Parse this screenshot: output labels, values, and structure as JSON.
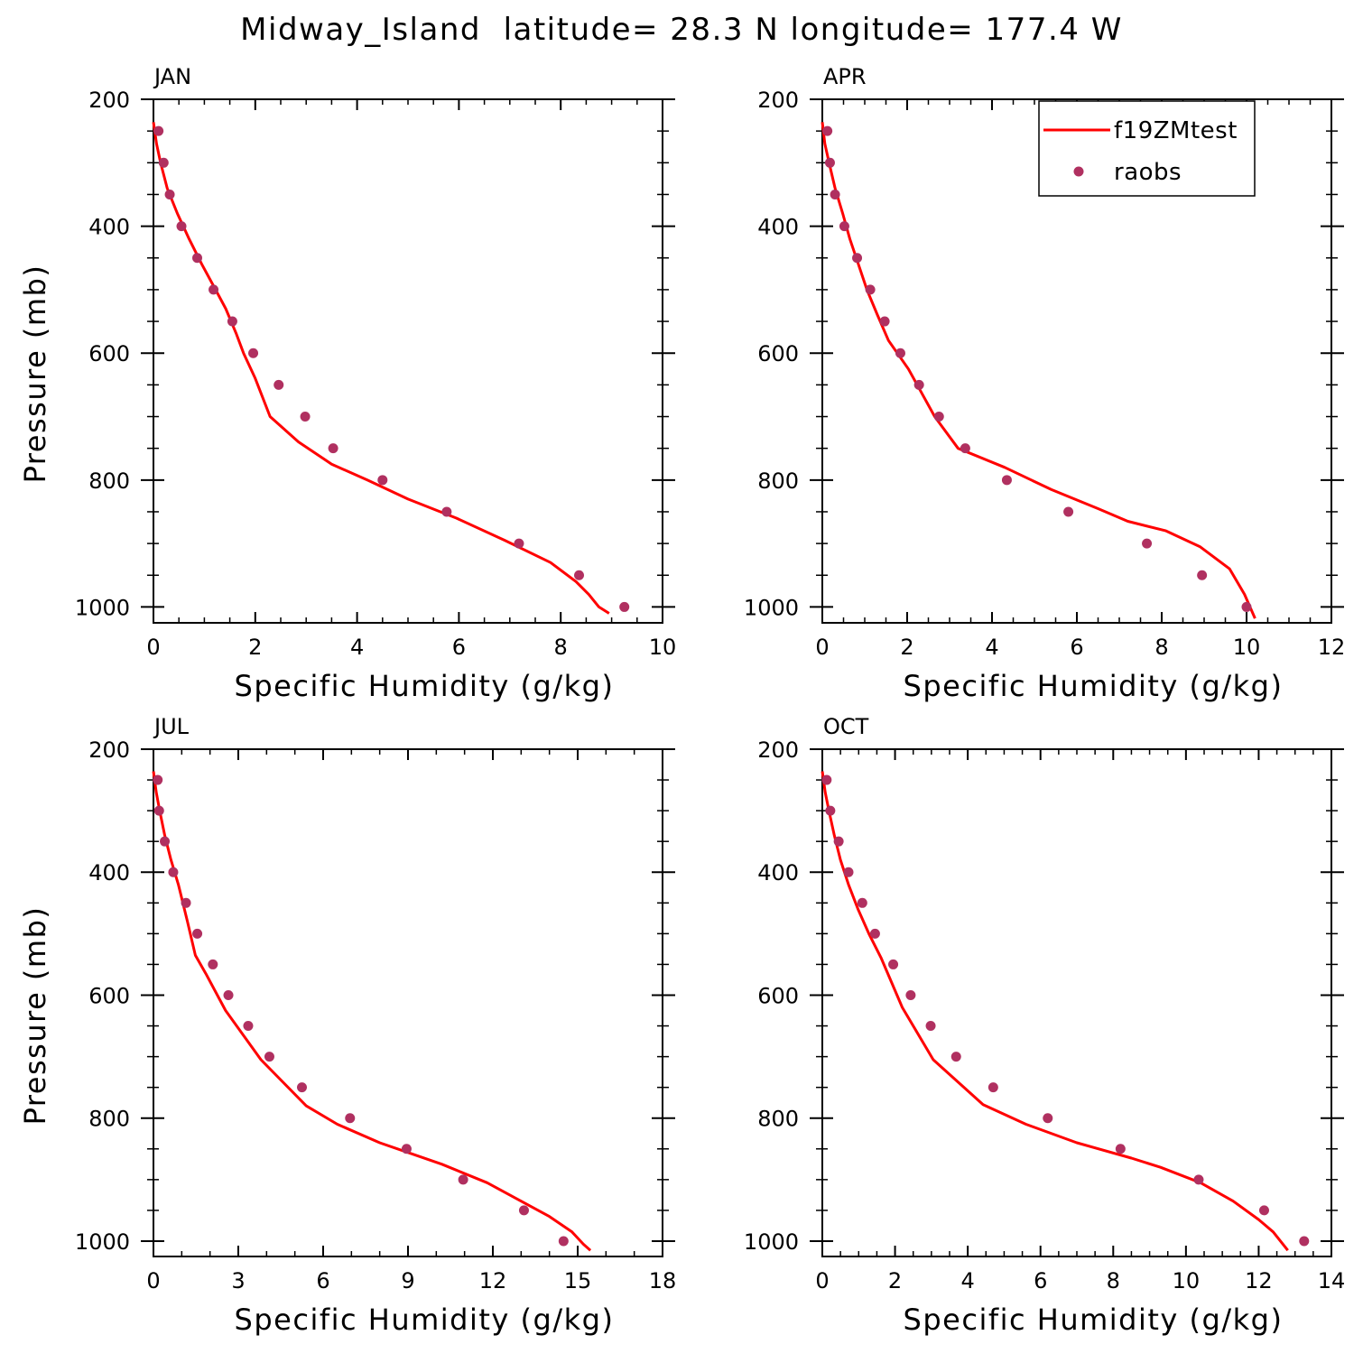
{
  "figure": {
    "title": "Midway_Island  latitude= 28.3 N longitude= 177.4 W"
  },
  "colors": {
    "model": "#ff0000",
    "obs": "#b03060",
    "axis": "#000000"
  },
  "legend": {
    "placement": "top-right (APR panel)",
    "model_label": "f19ZMtest",
    "obs_label": "raobs"
  },
  "chart_data": [
    {
      "type": "line",
      "title": "JAN",
      "xlabel": "Specific Humidity (g/kg)",
      "ylabel": "Pressure (mb)",
      "xlim": [
        0,
        10
      ],
      "ylim": [
        200,
        1025
      ],
      "y_inverted": true,
      "xticks": [
        0,
        2,
        4,
        6,
        8,
        10
      ],
      "yticks": [
        200,
        400,
        600,
        800,
        1000
      ],
      "series": [
        {
          "name": "f19ZMtest",
          "kind": "line",
          "x": [
            0.0,
            0.06,
            0.14,
            0.27,
            0.47,
            0.7,
            0.95,
            1.22,
            1.42,
            1.63,
            1.77,
            2.0,
            2.29,
            2.85,
            3.5,
            4.2,
            5.0,
            5.95,
            6.9,
            7.8,
            8.3,
            8.55,
            8.75,
            8.95
          ],
          "y": [
            236,
            270,
            300,
            340,
            380,
            420,
            460,
            500,
            530,
            570,
            600,
            640,
            700,
            740,
            775,
            800,
            830,
            860,
            895,
            930,
            960,
            980,
            1000,
            1010
          ]
        },
        {
          "name": "raobs",
          "kind": "scatter",
          "x": [
            0.1,
            0.2,
            0.32,
            0.55,
            0.86,
            1.18,
            1.55,
            1.96,
            2.46,
            2.98,
            3.53,
            4.5,
            5.76,
            7.18,
            8.36,
            9.25
          ],
          "y": [
            250,
            300,
            350,
            400,
            450,
            500,
            550,
            600,
            650,
            700,
            750,
            800,
            850,
            900,
            950,
            1000
          ]
        }
      ]
    },
    {
      "type": "line",
      "title": "APR",
      "xlabel": "Specific Humidity (g/kg)",
      "ylabel": "",
      "xlim": [
        0,
        12
      ],
      "ylim": [
        200,
        1025
      ],
      "y_inverted": true,
      "xticks": [
        0,
        2,
        4,
        6,
        8,
        10,
        12
      ],
      "yticks": [
        200,
        400,
        600,
        800,
        1000
      ],
      "series": [
        {
          "name": "f19ZMtest",
          "kind": "line",
          "x": [
            0.0,
            0.06,
            0.16,
            0.3,
            0.48,
            0.65,
            0.85,
            1.05,
            1.3,
            1.56,
            2.03,
            2.65,
            3.2,
            4.3,
            5.4,
            6.5,
            7.2,
            8.1,
            8.9,
            9.6,
            9.95,
            10.2
          ],
          "y": [
            236,
            270,
            300,
            340,
            380,
            420,
            460,
            500,
            540,
            580,
            625,
            700,
            750,
            780,
            815,
            845,
            865,
            880,
            905,
            940,
            980,
            1018
          ]
        },
        {
          "name": "raobs",
          "kind": "scatter",
          "x": [
            0.12,
            0.18,
            0.3,
            0.52,
            0.82,
            1.13,
            1.47,
            1.84,
            2.28,
            2.75,
            3.37,
            4.35,
            5.8,
            7.65,
            8.95,
            10.0
          ],
          "y": [
            250,
            300,
            350,
            400,
            450,
            500,
            550,
            600,
            650,
            700,
            750,
            800,
            850,
            900,
            950,
            1000
          ]
        }
      ]
    },
    {
      "type": "line",
      "title": "JUL",
      "xlabel": "Specific Humidity (g/kg)",
      "ylabel": "Pressure (mb)",
      "xlim": [
        0,
        18
      ],
      "ylim": [
        200,
        1025
      ],
      "y_inverted": true,
      "xticks": [
        0,
        3,
        6,
        9,
        12,
        15,
        18
      ],
      "yticks": [
        200,
        400,
        600,
        800,
        1000
      ],
      "series": [
        {
          "name": "f19ZMtest",
          "kind": "line",
          "x": [
            0.0,
            0.1,
            0.22,
            0.4,
            0.62,
            0.88,
            1.2,
            1.48,
            1.85,
            2.55,
            3.8,
            5.4,
            6.5,
            8.0,
            10.2,
            11.8,
            13.0,
            14.0,
            14.8,
            15.2,
            15.45
          ],
          "y": [
            236,
            270,
            300,
            340,
            380,
            420,
            480,
            535,
            565,
            625,
            705,
            780,
            810,
            840,
            875,
            905,
            935,
            960,
            985,
            1005,
            1015
          ]
        },
        {
          "name": "raobs",
          "kind": "scatter",
          "x": [
            0.15,
            0.2,
            0.4,
            0.7,
            1.15,
            1.55,
            2.1,
            2.65,
            3.35,
            4.1,
            5.25,
            6.95,
            8.95,
            10.95,
            13.1,
            14.5
          ],
          "y": [
            250,
            300,
            350,
            400,
            450,
            500,
            550,
            600,
            650,
            700,
            750,
            800,
            850,
            900,
            950,
            1000
          ]
        }
      ]
    },
    {
      "type": "line",
      "title": "OCT",
      "xlabel": "Specific Humidity (g/kg)",
      "ylabel": "",
      "xlim": [
        0,
        14
      ],
      "ylim": [
        200,
        1025
      ],
      "y_inverted": true,
      "xticks": [
        0,
        2,
        4,
        6,
        8,
        10,
        12,
        14
      ],
      "yticks": [
        200,
        400,
        600,
        800,
        1000
      ],
      "series": [
        {
          "name": "f19ZMtest",
          "kind": "line",
          "x": [
            0.0,
            0.08,
            0.18,
            0.33,
            0.5,
            0.72,
            0.98,
            1.28,
            1.62,
            2.2,
            3.05,
            4.42,
            5.6,
            7.0,
            8.5,
            9.3,
            10.4,
            11.3,
            12.0,
            12.4,
            12.8
          ],
          "y": [
            236,
            270,
            300,
            340,
            380,
            420,
            460,
            500,
            540,
            620,
            705,
            778,
            810,
            840,
            865,
            880,
            905,
            935,
            965,
            985,
            1015
          ]
        },
        {
          "name": "raobs",
          "kind": "scatter",
          "x": [
            0.12,
            0.22,
            0.45,
            0.72,
            1.1,
            1.45,
            1.95,
            2.43,
            2.98,
            3.68,
            4.7,
            6.2,
            8.2,
            10.35,
            12.15,
            13.25
          ],
          "y": [
            250,
            300,
            350,
            400,
            450,
            500,
            550,
            600,
            650,
            700,
            750,
            800,
            850,
            900,
            950,
            1000
          ]
        }
      ]
    }
  ]
}
